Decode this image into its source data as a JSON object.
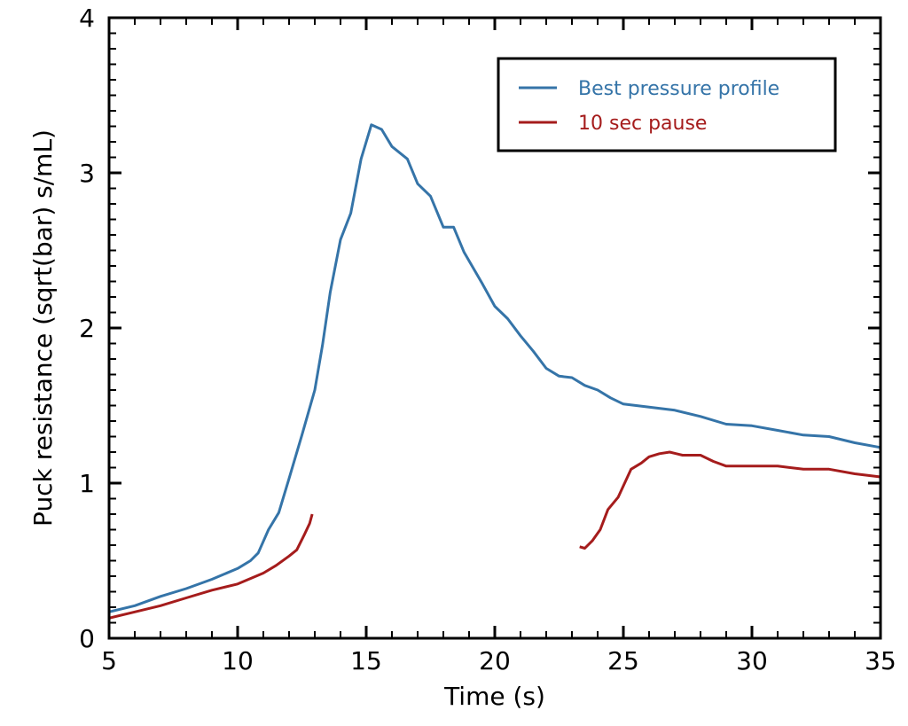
{
  "chart_data": {
    "type": "line",
    "title": "",
    "xlabel": "Time (s)",
    "ylabel": "Puck resistance (sqrt(bar) s/mL)",
    "xlim": [
      5,
      35
    ],
    "ylim": [
      0,
      4
    ],
    "x_ticks": [
      5,
      10,
      15,
      20,
      25,
      30,
      35
    ],
    "x_tick_labels": [
      "5",
      "10",
      "15",
      "20",
      "25",
      "30",
      "35"
    ],
    "y_ticks": [
      0,
      1,
      2,
      3,
      4
    ],
    "y_tick_labels": [
      "0",
      "1",
      "2",
      "3",
      "4"
    ],
    "x_minor_step": 1,
    "y_minor_step": 0.1,
    "grid": false,
    "legend_position": "top-right",
    "series": [
      {
        "name": "Best pressure profile",
        "color": "#3574a8",
        "segments": [
          {
            "x": [
              5,
              6,
              7,
              8,
              9,
              10,
              10.5,
              10.8,
              11.2,
              11.6,
              12,
              12.5,
              13,
              13.3,
              13.6,
              14,
              14.4,
              14.8,
              15.2,
              15.6,
              16,
              16.6,
              17,
              17.5,
              18,
              18.4,
              18.8,
              19.5,
              20,
              20.5,
              21,
              21.5,
              22,
              22.5,
              23,
              23.5,
              24,
              24.5,
              25,
              25.5,
              26,
              27,
              28,
              29,
              30,
              31,
              32,
              33,
              34,
              35
            ],
            "y": [
              0.17,
              0.21,
              0.27,
              0.32,
              0.38,
              0.45,
              0.5,
              0.55,
              0.7,
              0.81,
              1.03,
              1.31,
              1.6,
              1.89,
              2.23,
              2.57,
              2.74,
              3.09,
              3.31,
              3.28,
              3.17,
              3.09,
              2.93,
              2.85,
              2.65,
              2.65,
              2.49,
              2.29,
              2.14,
              2.06,
              1.95,
              1.85,
              1.74,
              1.69,
              1.68,
              1.63,
              1.6,
              1.55,
              1.51,
              1.5,
              1.49,
              1.47,
              1.43,
              1.38,
              1.37,
              1.34,
              1.31,
              1.3,
              1.26,
              1.23
            ]
          }
        ]
      },
      {
        "name": "10 sec pause",
        "color": "#a51c1c",
        "segments": [
          {
            "x": [
              5,
              6,
              7,
              8,
              9,
              10,
              11,
              11.5,
              12,
              12.3,
              12.6,
              12.8,
              12.9
            ],
            "y": [
              0.13,
              0.17,
              0.21,
              0.26,
              0.31,
              0.35,
              0.42,
              0.47,
              0.53,
              0.57,
              0.67,
              0.74,
              0.8
            ]
          },
          {
            "x": [
              23.3,
              23.5,
              23.8,
              24.1,
              24.4,
              24.8,
              25.3,
              25.7,
              26.0,
              26.4,
              26.8,
              27.3,
              28.0,
              28.5,
              29.0,
              29.5,
              30,
              31,
              32,
              33,
              34,
              35
            ],
            "y": [
              0.59,
              0.58,
              0.63,
              0.7,
              0.83,
              0.91,
              1.09,
              1.13,
              1.17,
              1.19,
              1.2,
              1.18,
              1.18,
              1.14,
              1.11,
              1.11,
              1.11,
              1.11,
              1.09,
              1.09,
              1.06,
              1.04
            ]
          }
        ]
      }
    ]
  }
}
